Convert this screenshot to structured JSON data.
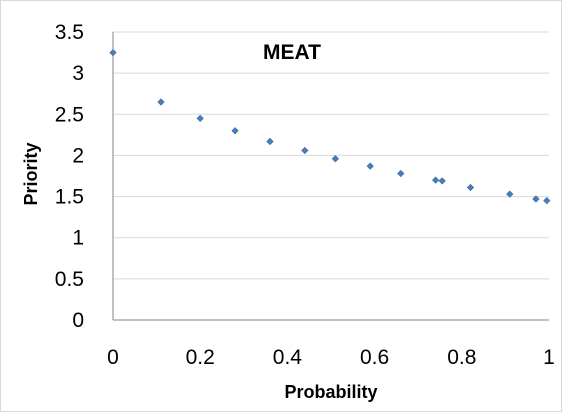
{
  "chart_data": {
    "type": "scatter",
    "title": "MEAT",
    "xlabel": "Probability",
    "ylabel": "Priority",
    "xlim": [
      0,
      1
    ],
    "ylim": [
      0,
      3.5
    ],
    "x_ticks": [
      "0",
      "0.2",
      "0.4",
      "0.6",
      "0.8",
      "1"
    ],
    "y_ticks": [
      "0",
      "0.5",
      "1",
      "1.5",
      "2",
      "2.5",
      "3",
      "3.5"
    ],
    "grid": "horizontal",
    "marker_color": "#4a7ebb",
    "series": [
      {
        "x": [
          0.0,
          0.11,
          0.2,
          0.28,
          0.36,
          0.44,
          0.51,
          0.59,
          0.66,
          0.74,
          0.755,
          0.82,
          0.91,
          0.97,
          0.995
        ],
        "y": [
          3.25,
          2.65,
          2.45,
          2.3,
          2.17,
          2.06,
          1.96,
          1.87,
          1.78,
          1.7,
          1.69,
          1.61,
          1.53,
          1.47,
          1.45
        ]
      }
    ]
  }
}
